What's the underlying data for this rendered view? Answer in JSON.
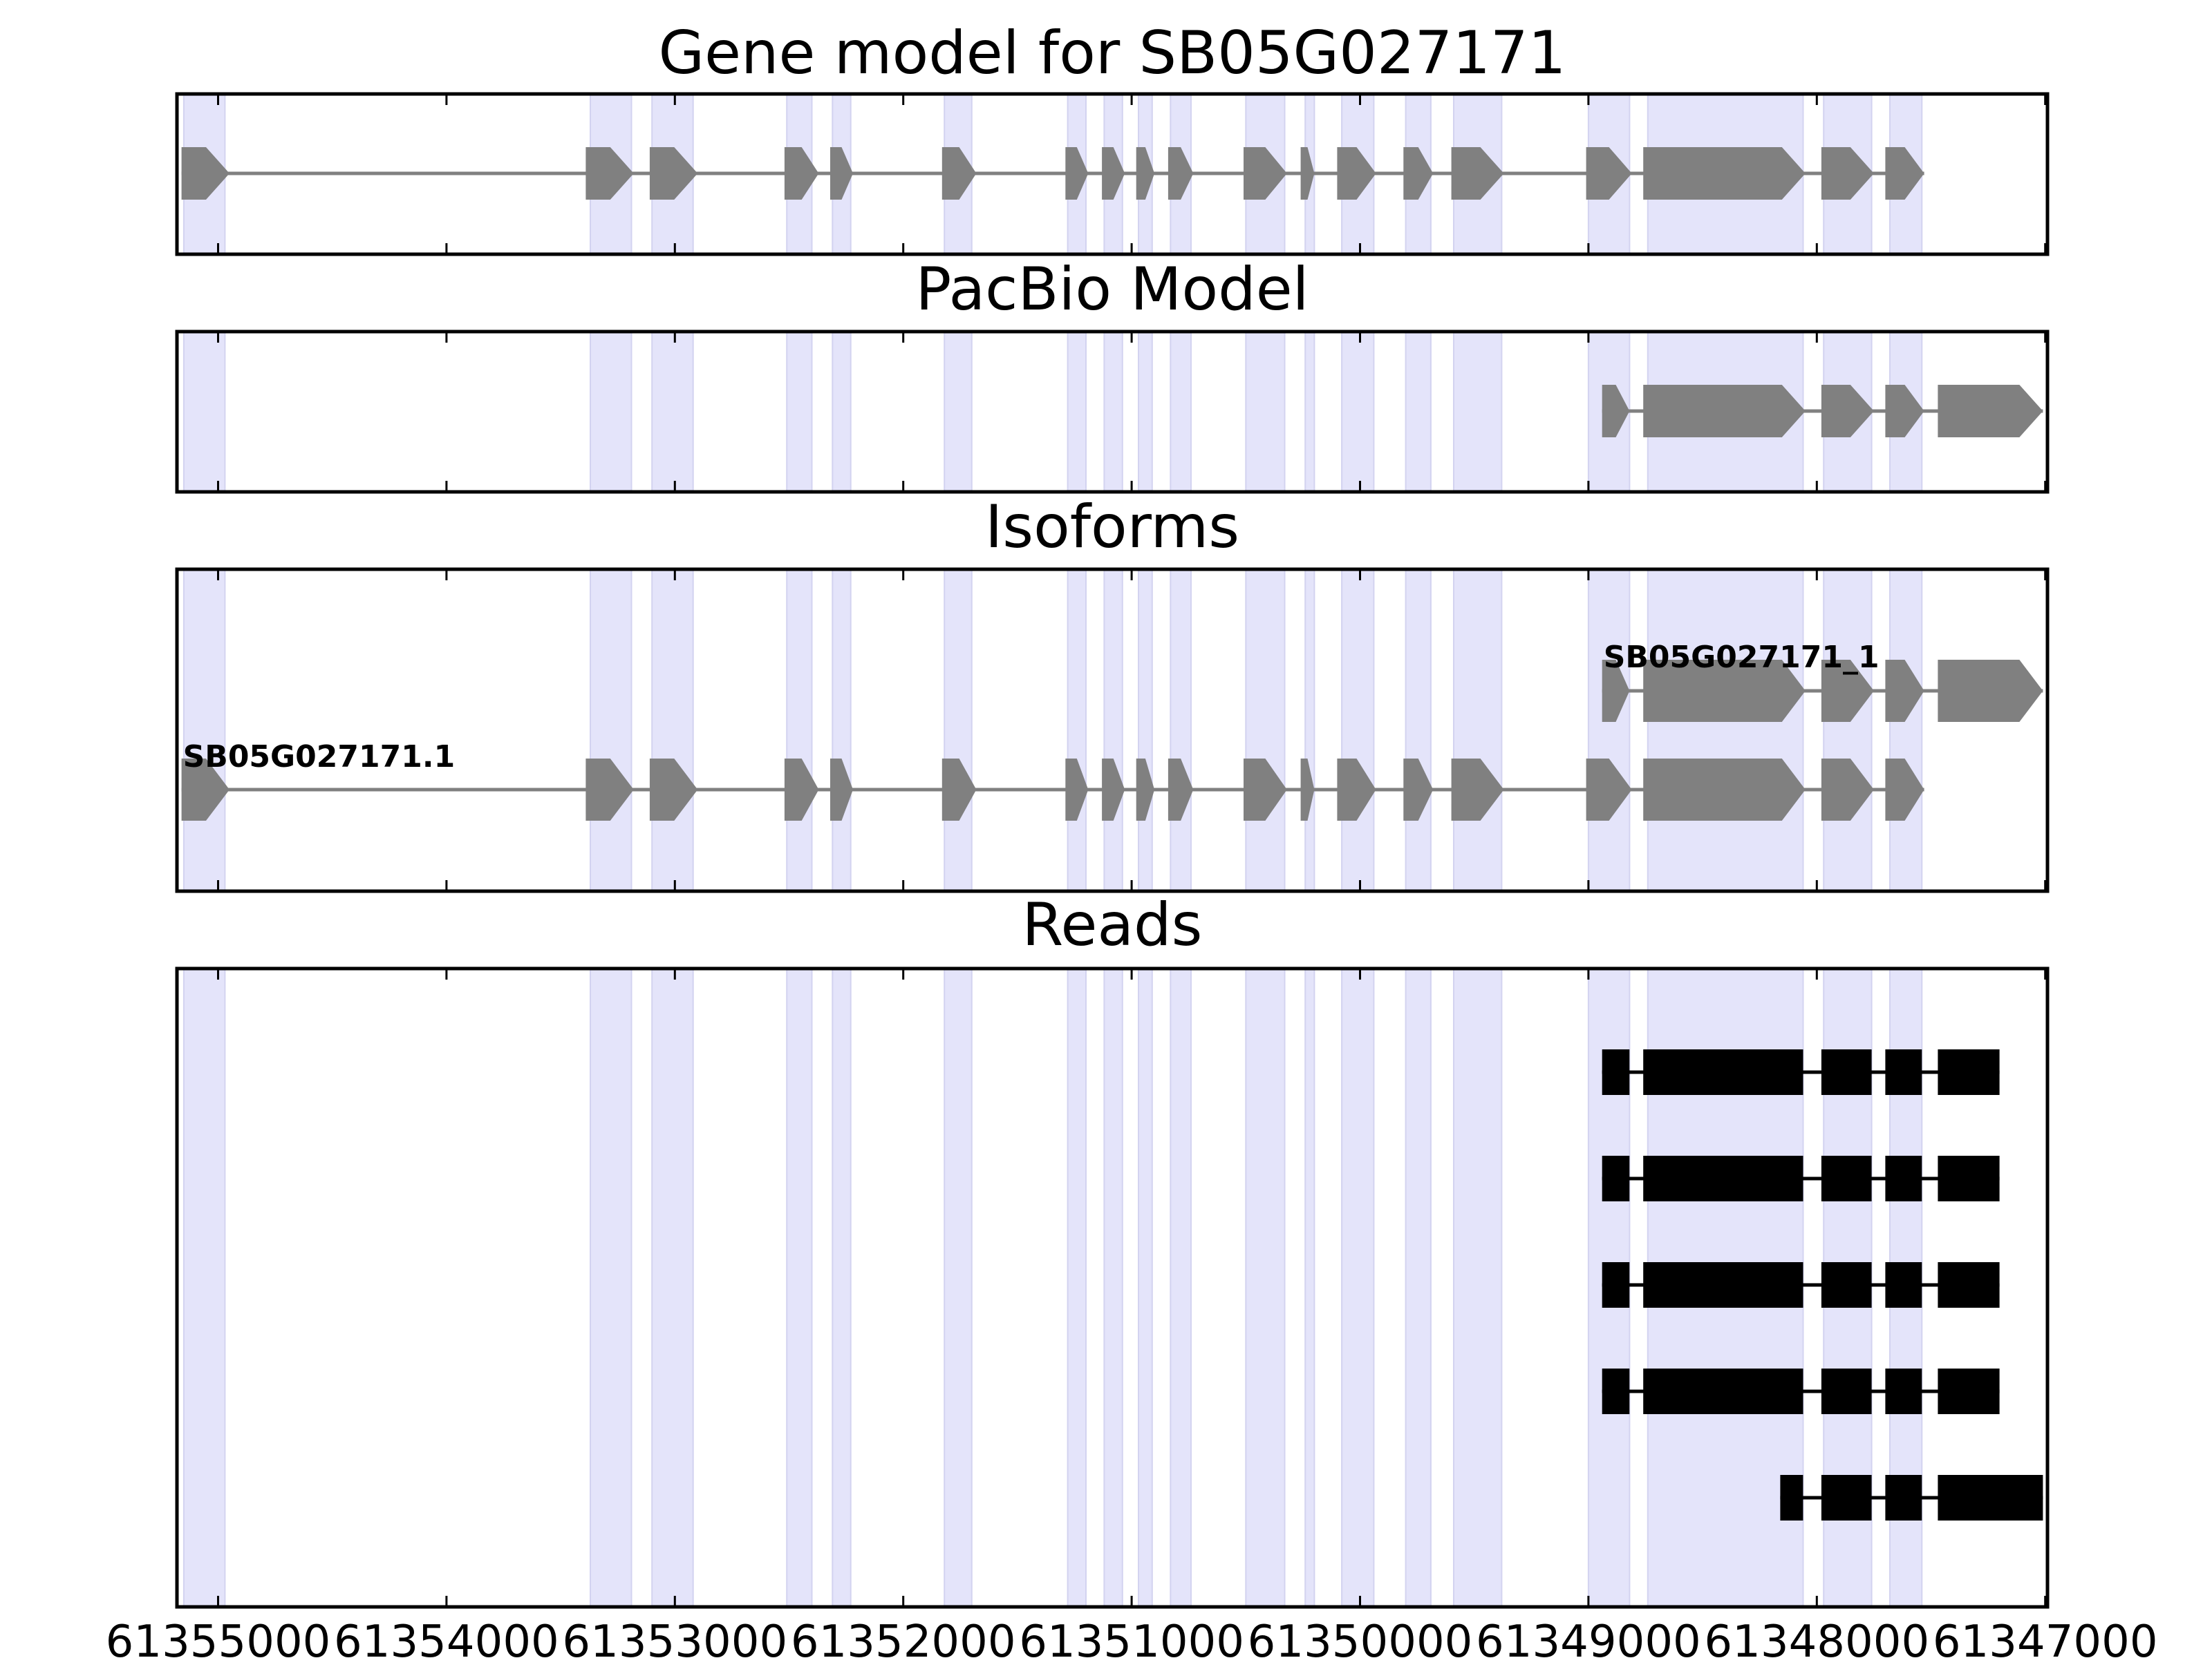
{
  "colors": {
    "exon_gray": "#808080",
    "intron_gray": "#808080",
    "read_black": "#000000",
    "highlight_lavender": "#e4e4fa"
  },
  "chart_data": [
    {
      "type": "gene_track",
      "title": "Gene model for SB05G027171",
      "x_axis": {
        "reversed": true,
        "ticks": [
          61355000,
          61354000,
          61353000,
          61352000,
          61351000,
          61350000,
          61349000,
          61348000,
          61347000
        ],
        "tick_labels_shown": false
      },
      "features": [
        {
          "name": "",
          "exons": [
            [
              61355160,
              61354950
            ],
            [
              61353390,
              61353180
            ],
            [
              61353110,
              61352900
            ],
            [
              61352520,
              61352370
            ],
            [
              61352320,
              61352220
            ],
            [
              61351830,
              61351680
            ],
            [
              61351290,
              61351190
            ],
            [
              61351130,
              61351030
            ],
            [
              61350980,
              61350900
            ],
            [
              61350840,
              61350730
            ],
            [
              61350510,
              61350320
            ],
            [
              61350260,
              61350200
            ],
            [
              61350100,
              61349930
            ],
            [
              61349810,
              61349680
            ],
            [
              61349600,
              61349370
            ],
            [
              61349010,
              61348810
            ],
            [
              61348760,
              61348050
            ],
            [
              61347980,
              61347750
            ],
            [
              61347700,
              61347530
            ]
          ]
        }
      ]
    },
    {
      "type": "gene_track",
      "title": "PacBio Model",
      "features": [
        {
          "name": "",
          "exons": [
            [
              61348940,
              61348820
            ],
            [
              61348760,
              61348050
            ],
            [
              61347980,
              61347750
            ],
            [
              61347700,
              61347530
            ],
            [
              61347470,
              61347010
            ]
          ]
        }
      ]
    },
    {
      "type": "gene_track",
      "title": "Isoforms",
      "features": [
        {
          "name": "SB05G027171_1",
          "exons": [
            [
              61348940,
              61348820
            ],
            [
              61348760,
              61348050
            ],
            [
              61347980,
              61347750
            ],
            [
              61347700,
              61347530
            ],
            [
              61347470,
              61347010
            ]
          ]
        },
        {
          "name": "SB05G027171.1",
          "exons": [
            [
              61355160,
              61354950
            ],
            [
              61353390,
              61353180
            ],
            [
              61353110,
              61352900
            ],
            [
              61352520,
              61352370
            ],
            [
              61352320,
              61352220
            ],
            [
              61351830,
              61351680
            ],
            [
              61351290,
              61351190
            ],
            [
              61351130,
              61351030
            ],
            [
              61350980,
              61350900
            ],
            [
              61350840,
              61350730
            ],
            [
              61350510,
              61350320
            ],
            [
              61350260,
              61350200
            ],
            [
              61350100,
              61349930
            ],
            [
              61349810,
              61349680
            ],
            [
              61349600,
              61349370
            ],
            [
              61349010,
              61348810
            ],
            [
              61348760,
              61348050
            ],
            [
              61347980,
              61347750
            ],
            [
              61347700,
              61347530
            ]
          ]
        }
      ]
    },
    {
      "type": "reads_track",
      "title": "Reads",
      "x_axis": {
        "reversed": true,
        "ticks": [
          61355000,
          61354000,
          61353000,
          61352000,
          61351000,
          61350000,
          61349000,
          61348000,
          61347000
        ],
        "tick_labels": [
          "61355000",
          "61354000",
          "61353000",
          "61352000",
          "61351000",
          "61350000",
          "61349000",
          "61348000",
          "61347000"
        ]
      },
      "reads": [
        {
          "exons": [
            [
              61348940,
              61348820
            ],
            [
              61348760,
              61348060
            ],
            [
              61347980,
              61347760
            ],
            [
              61347700,
              61347540
            ],
            [
              61347470,
              61347200
            ]
          ]
        },
        {
          "exons": [
            [
              61348940,
              61348820
            ],
            [
              61348760,
              61348060
            ],
            [
              61347980,
              61347760
            ],
            [
              61347700,
              61347540
            ],
            [
              61347470,
              61347200
            ]
          ]
        },
        {
          "exons": [
            [
              61348940,
              61348820
            ],
            [
              61348760,
              61348060
            ],
            [
              61347980,
              61347760
            ],
            [
              61347700,
              61347540
            ],
            [
              61347470,
              61347200
            ]
          ]
        },
        {
          "exons": [
            [
              61348940,
              61348820
            ],
            [
              61348760,
              61348060
            ],
            [
              61347980,
              61347760
            ],
            [
              61347700,
              61347540
            ],
            [
              61347470,
              61347200
            ]
          ]
        },
        {
          "exons": [
            [
              61348160,
              61348060
            ],
            [
              61347980,
              61347760
            ],
            [
              61347700,
              61347540
            ],
            [
              61347470,
              61347010
            ]
          ]
        }
      ]
    }
  ],
  "highlight_regions": [
    [
      61355150,
      61354970
    ],
    [
      61353370,
      61353190
    ],
    [
      61353100,
      61352920
    ],
    [
      61352510,
      61352400
    ],
    [
      61352310,
      61352230
    ],
    [
      61351820,
      61351700
    ],
    [
      61351280,
      61351200
    ],
    [
      61351120,
      61351040
    ],
    [
      61350970,
      61350910
    ],
    [
      61350830,
      61350740
    ],
    [
      61350500,
      61350330
    ],
    [
      61350240,
      61350200
    ],
    [
      61350080,
      61349940
    ],
    [
      61349800,
      61349690
    ],
    [
      61349590,
      61349380
    ],
    [
      61349000,
      61348820
    ],
    [
      61348740,
      61348060
    ],
    [
      61347970,
      61347760
    ],
    [
      61347680,
      61347540
    ]
  ],
  "x_range": [
    61355180,
    61346990
  ]
}
